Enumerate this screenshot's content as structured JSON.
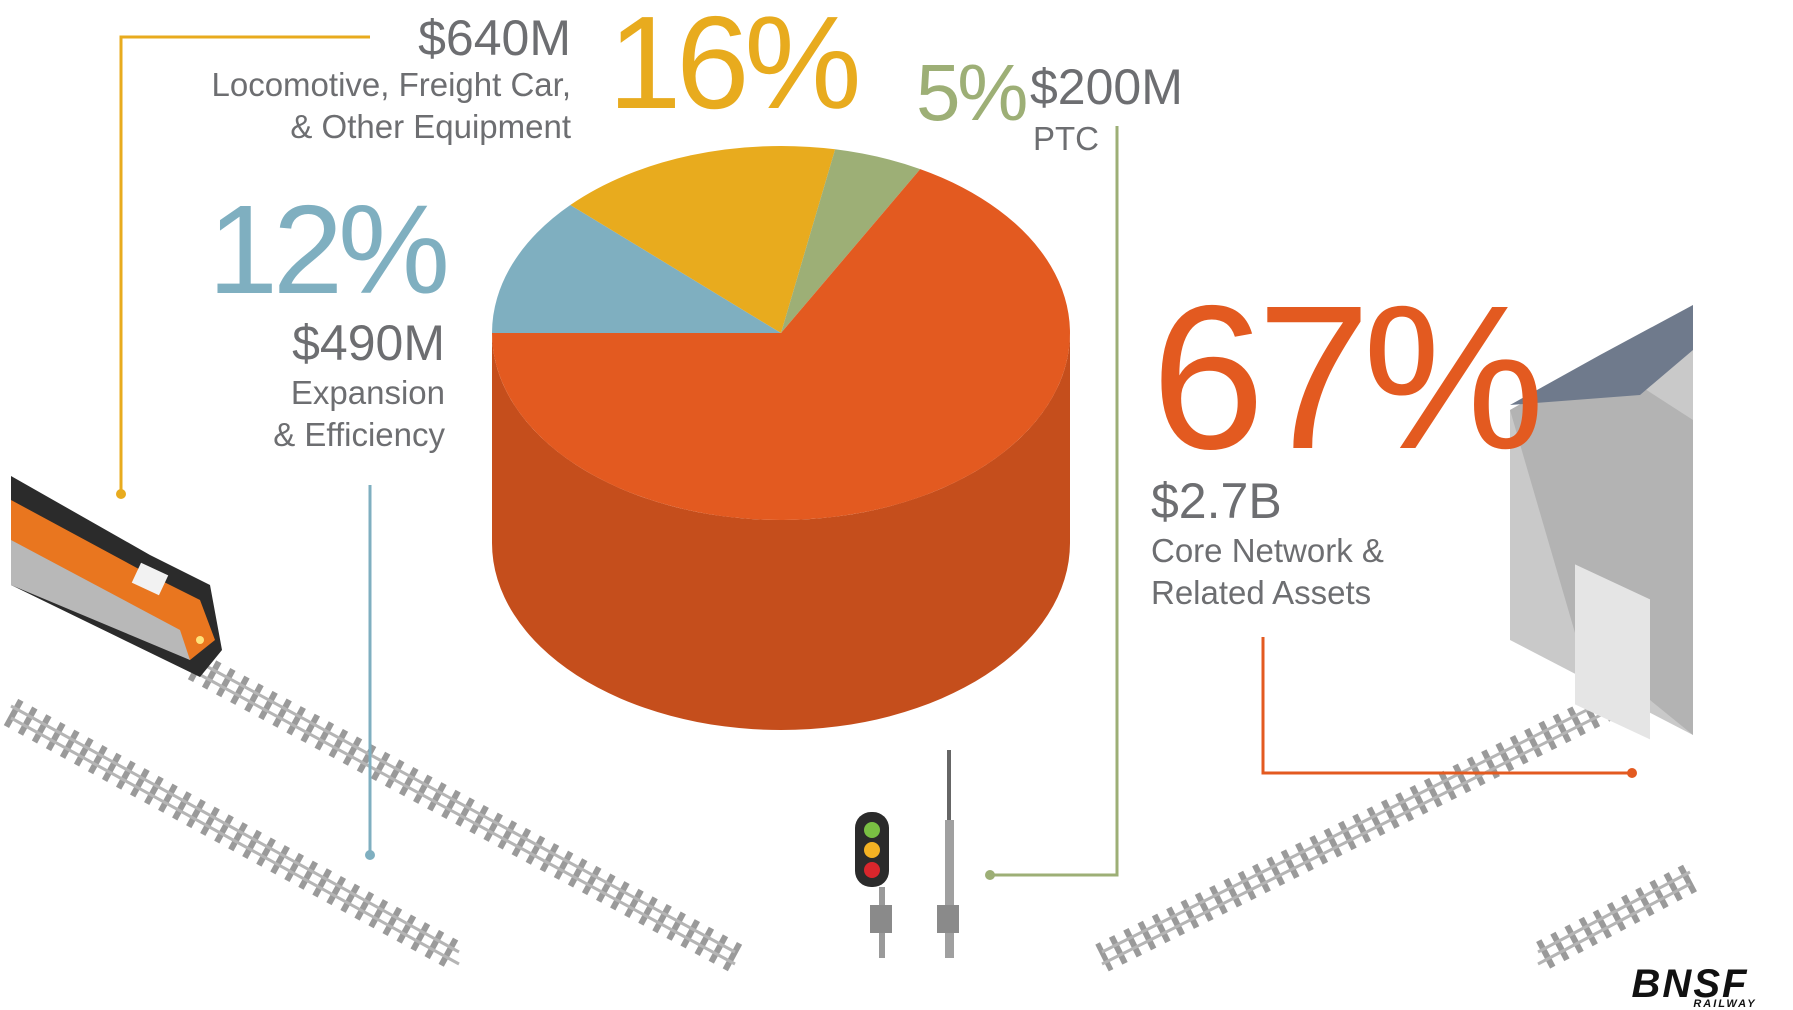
{
  "chart_data": {
    "type": "pie",
    "categories": [
      "Expansion\n& Efficiency",
      "Locomotive, Freight Car,\n& Other Equipment",
      "PTC",
      "Core Network &\nRelated Assets"
    ],
    "values": [
      12,
      16,
      5,
      67
    ],
    "value_labels": [
      "12%",
      "16%",
      "5%",
      "67%"
    ],
    "amounts": [
      "$490M",
      "$640M",
      "$200M",
      "$2.7B"
    ],
    "colors": [
      "#7fafc0",
      "#e8ab1e",
      "#9daf76",
      "#e35a20"
    ]
  },
  "logo": {
    "name": "BNSF",
    "tagline": "RAILWAY"
  }
}
